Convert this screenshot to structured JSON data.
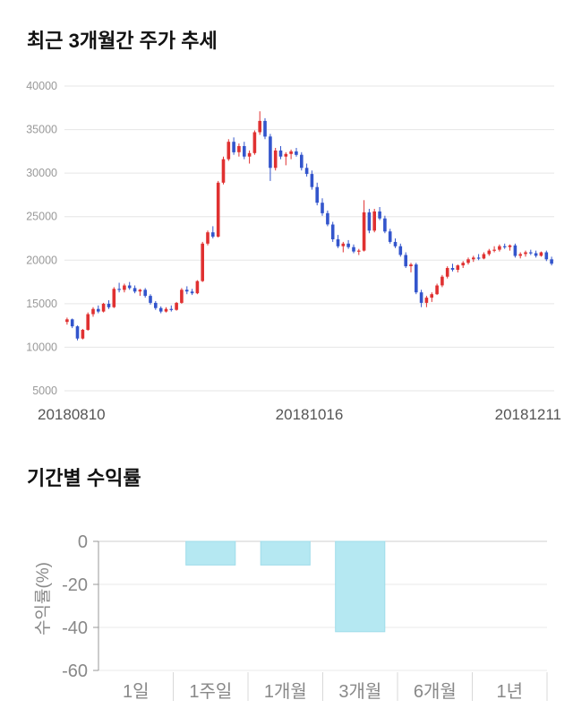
{
  "section1": {
    "title": "최근 3개월간 주가 추세"
  },
  "section2": {
    "title": "기간별 수익률"
  },
  "chart_data": [
    {
      "type": "candlestick",
      "title": "최근 3개월간 주가 추세",
      "ylim": [
        5000,
        40000
      ],
      "yticks": [
        40000,
        35000,
        30000,
        25000,
        20000,
        15000,
        10000,
        5000
      ],
      "xtick_labels": [
        "20180810",
        "20181016",
        "20181211"
      ],
      "up_color": "#e03131",
      "down_color": "#3355cc",
      "grid": true,
      "candles_format": [
        "open",
        "high",
        "low",
        "close"
      ],
      "candles": [
        [
          12900,
          13400,
          12600,
          13200
        ],
        [
          13200,
          13300,
          12200,
          12400
        ],
        [
          12400,
          12500,
          10800,
          11000
        ],
        [
          11000,
          12100,
          10900,
          12000
        ],
        [
          12000,
          14000,
          11900,
          13800
        ],
        [
          13800,
          14600,
          13500,
          14400
        ],
        [
          14400,
          14800,
          13900,
          14100
        ],
        [
          14100,
          15100,
          14000,
          15000
        ],
        [
          15000,
          15400,
          14400,
          14600
        ],
        [
          14600,
          16900,
          14500,
          16700
        ],
        [
          16700,
          17400,
          16300,
          16600
        ],
        [
          16600,
          17300,
          16300,
          17100
        ],
        [
          17100,
          17500,
          16600,
          16800
        ],
        [
          16800,
          17100,
          16200,
          16400
        ],
        [
          16400,
          16700,
          15900,
          16600
        ],
        [
          16600,
          16800,
          15700,
          15900
        ],
        [
          15900,
          16100,
          14900,
          15100
        ],
        [
          15100,
          15300,
          14300,
          14500
        ],
        [
          14500,
          14700,
          13900,
          14100
        ],
        [
          14100,
          14600,
          14000,
          14400
        ],
        [
          14400,
          14800,
          14100,
          14300
        ],
        [
          14300,
          15200,
          14200,
          15100
        ],
        [
          15100,
          16800,
          15000,
          16600
        ],
        [
          16600,
          17000,
          16100,
          16400
        ],
        [
          16400,
          16700,
          16000,
          16200
        ],
        [
          16200,
          17700,
          16100,
          17600
        ],
        [
          17600,
          22100,
          17500,
          21900
        ],
        [
          21900,
          23400,
          21700,
          23200
        ],
        [
          23200,
          23900,
          22500,
          22700
        ],
        [
          22700,
          29100,
          22600,
          28900
        ],
        [
          28900,
          31900,
          28700,
          31600
        ],
        [
          31600,
          33900,
          31400,
          33600
        ],
        [
          33600,
          34100,
          32100,
          32400
        ],
        [
          32400,
          33400,
          31900,
          33100
        ],
        [
          33100,
          33600,
          31600,
          31900
        ],
        [
          31900,
          32600,
          31100,
          32300
        ],
        [
          32300,
          34900,
          32100,
          34700
        ],
        [
          34700,
          37100,
          34400,
          36000
        ],
        [
          36000,
          36300,
          33900,
          34200
        ],
        [
          34200,
          34500,
          29100,
          30600
        ],
        [
          30600,
          32900,
          30300,
          32600
        ],
        [
          32600,
          33100,
          31600,
          31900
        ],
        [
          31900,
          32400,
          30900,
          32200
        ],
        [
          32200,
          32700,
          31600,
          32500
        ],
        [
          32500,
          32900,
          31900,
          32100
        ],
        [
          32100,
          32400,
          30300,
          30600
        ],
        [
          30600,
          31100,
          29600,
          29900
        ],
        [
          29900,
          30300,
          28100,
          28400
        ],
        [
          28400,
          28900,
          26300,
          26600
        ],
        [
          26600,
          27100,
          25100,
          25400
        ],
        [
          25400,
          25700,
          23900,
          24100
        ],
        [
          24100,
          24400,
          22100,
          22400
        ],
        [
          22400,
          22900,
          21400,
          21600
        ],
        [
          21600,
          22100,
          20900,
          21900
        ],
        [
          21900,
          22300,
          21300,
          21500
        ],
        [
          21500,
          21800,
          20800,
          21000
        ],
        [
          21000,
          21300,
          20600,
          21100
        ],
        [
          21100,
          26900,
          21000,
          25500
        ],
        [
          25500,
          25900,
          23100,
          23400
        ],
        [
          23400,
          25900,
          23200,
          25600
        ],
        [
          25600,
          26100,
          24600,
          24800
        ],
        [
          24800,
          25100,
          23100,
          23300
        ],
        [
          23300,
          23600,
          21900,
          22100
        ],
        [
          22100,
          22500,
          21400,
          21600
        ],
        [
          21600,
          21900,
          20400,
          20600
        ],
        [
          20600,
          20900,
          19100,
          19300
        ],
        [
          19300,
          19700,
          18600,
          19500
        ],
        [
          19500,
          19700,
          16100,
          16300
        ],
        [
          16300,
          16600,
          14600,
          15100
        ],
        [
          15100,
          15900,
          14600,
          15700
        ],
        [
          15700,
          16300,
          15200,
          16100
        ],
        [
          16100,
          17300,
          16000,
          17100
        ],
        [
          17100,
          18300,
          16900,
          18100
        ],
        [
          18100,
          19300,
          17900,
          19100
        ],
        [
          19100,
          19600,
          18700,
          18900
        ],
        [
          18900,
          19500,
          18600,
          19400
        ],
        [
          19400,
          19900,
          19100,
          19700
        ],
        [
          19700,
          20300,
          19500,
          20100
        ],
        [
          20100,
          20500,
          19800,
          20300
        ],
        [
          20300,
          20700,
          20000,
          20200
        ],
        [
          20200,
          20900,
          20100,
          20700
        ],
        [
          20700,
          21300,
          20500,
          21100
        ],
        [
          21100,
          21600,
          20900,
          21200
        ],
        [
          21200,
          21800,
          21000,
          21600
        ],
        [
          21600,
          21900,
          21300,
          21500
        ],
        [
          21500,
          21800,
          21100,
          21700
        ],
        [
          21700,
          21900,
          20300,
          20500
        ],
        [
          20500,
          20900,
          20200,
          20700
        ],
        [
          20700,
          21100,
          20400,
          20900
        ],
        [
          20900,
          21200,
          20600,
          20800
        ],
        [
          20800,
          21100,
          20300,
          20500
        ],
        [
          20500,
          21000,
          20400,
          20900
        ],
        [
          20900,
          21100,
          19900,
          20100
        ],
        [
          20100,
          20400,
          19400,
          19600
        ]
      ]
    },
    {
      "type": "bar",
      "title": "기간별 수익률",
      "ylabel": "수익률(%)",
      "categories": [
        "1일",
        "1주일",
        "1개월",
        "3개월",
        "6개월",
        "1년"
      ],
      "values": [
        0,
        -11,
        -11,
        -42,
        null,
        null
      ],
      "ylim": [
        -60,
        0
      ],
      "yticks": [
        0,
        -20,
        -40,
        -60
      ],
      "bar_color": "#b5e8f2",
      "bar_border": "#a0dcea",
      "grid": true,
      "legend": "none"
    }
  ]
}
